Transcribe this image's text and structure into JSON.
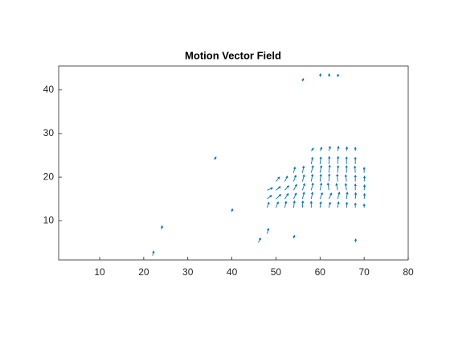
{
  "chart_data": {
    "type": "quiver",
    "title": "Motion Vector Field",
    "color": "#0072BD",
    "xlim": [
      0.7,
      80
    ],
    "ylim": [
      1,
      45.5
    ],
    "xticks": [
      10,
      20,
      30,
      40,
      50,
      60,
      70,
      80
    ],
    "yticks": [
      10,
      20,
      30,
      40
    ],
    "x": [
      48,
      50,
      52,
      54,
      56,
      58,
      60,
      62,
      64,
      66,
      68,
      70,
      48,
      50,
      52,
      54,
      56,
      58,
      60,
      62,
      64,
      66,
      68,
      70,
      48,
      50,
      52,
      54,
      56,
      58,
      60,
      62,
      64,
      66,
      68,
      70,
      50,
      52,
      54,
      56,
      58,
      60,
      62,
      64,
      66,
      68,
      70,
      54,
      56,
      58,
      60,
      62,
      64,
      66,
      68,
      70,
      58,
      60,
      62,
      64,
      66,
      68,
      58,
      60,
      62,
      64,
      66,
      68,
      22,
      24,
      36,
      40,
      46,
      48,
      54,
      68,
      56,
      60,
      62,
      64
    ],
    "y": [
      13,
      13,
      13,
      13,
      13,
      13,
      13,
      13,
      13,
      13,
      13,
      13,
      15,
      15,
      15,
      15,
      15,
      15,
      15,
      15,
      15,
      15,
      15,
      15,
      17,
      17,
      17,
      17,
      17,
      17,
      17,
      17,
      17,
      17,
      17,
      17,
      19,
      19,
      19,
      19,
      19,
      19,
      19,
      19,
      19,
      19,
      19,
      21,
      21,
      21,
      21,
      21,
      21,
      21,
      21,
      21,
      23,
      23,
      23,
      23,
      23,
      23,
      26,
      26,
      26,
      26,
      26,
      26,
      2,
      8,
      24,
      12,
      5,
      7,
      6,
      5,
      42,
      43,
      43,
      43
    ],
    "u": [
      0.4,
      0.5,
      0.3,
      0.2,
      0.1,
      0,
      0.2,
      0.3,
      0.2,
      0.1,
      0,
      0,
      1.0,
      1.1,
      0.8,
      0.6,
      0.4,
      0.3,
      0.5,
      0.6,
      0.4,
      0.2,
      0.1,
      0.1,
      1.2,
      1.0,
      0.9,
      0.7,
      0.5,
      0.4,
      0.3,
      -0.2,
      -0.3,
      -0.2,
      0,
      0.1,
      0.8,
      0.6,
      0.5,
      0.4,
      0.3,
      0.2,
      0.1,
      -0.1,
      -0.2,
      0,
      0.1,
      0.3,
      0.3,
      0.4,
      0.3,
      0.2,
      0.1,
      0,
      -0.1,
      0,
      0.3,
      0.2,
      0.1,
      0.1,
      0,
      0,
      0.5,
      0.4,
      0.3,
      0.2,
      0.1,
      0,
      0.3,
      0.2,
      0.4,
      0.1,
      0.5,
      0.3,
      0.2,
      0.1,
      0.2,
      0.1,
      0.1,
      0.1
    ],
    "v": [
      1.2,
      1.3,
      1.4,
      1.5,
      1.5,
      1.4,
      1.3,
      1.2,
      1.3,
      1.2,
      1.0,
      0.8,
      0.8,
      1.0,
      1.2,
      1.3,
      1.5,
      1.5,
      1.4,
      1.3,
      1.5,
      1.5,
      1.4,
      1.2,
      0.5,
      0.8,
      1.0,
      1.3,
      1.5,
      1.6,
      1.6,
      1.6,
      1.5,
      1.5,
      1.4,
      1.2,
      1.0,
      1.2,
      1.4,
      1.5,
      1.6,
      1.6,
      1.7,
      1.6,
      1.5,
      1.4,
      1.2,
      1.3,
      1.5,
      1.6,
      1.6,
      1.7,
      1.6,
      1.6,
      1.5,
      1.2,
      1.5,
      1.6,
      1.7,
      1.7,
      1.6,
      1.5,
      0.6,
      0.8,
      1.0,
      1.0,
      0.9,
      0.8,
      1.0,
      0.8,
      0.6,
      0.7,
      1.0,
      1.2,
      0.6,
      0.8,
      0.6,
      0.7,
      0.7,
      0.6
    ]
  }
}
